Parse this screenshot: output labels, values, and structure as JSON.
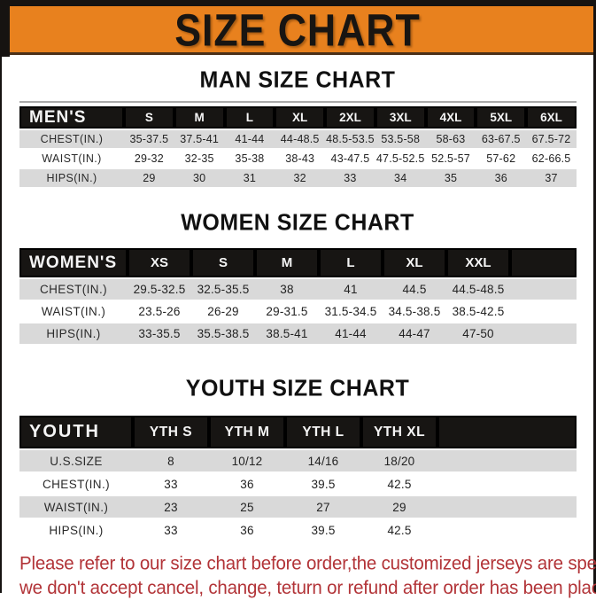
{
  "banner": {
    "title": "SIZE CHART",
    "accent_color": "#E8811E",
    "bar_color": "#161311"
  },
  "sections": [
    {
      "heading": "MAN SIZE CHART",
      "table": {
        "header": [
          "MEN'S",
          "S",
          "M",
          "L",
          "XL",
          "2XL",
          "3XL",
          "4XL",
          "5XL",
          "6XL"
        ],
        "rows": [
          [
            "CHEST(IN.)",
            "35-37.5",
            "37.5-41",
            "41-44",
            "44-48.5",
            "48.5-53.5",
            "53.5-58",
            "58-63",
            "63-67.5",
            "67.5-72"
          ],
          [
            "WAIST(IN.)",
            "29-32",
            "32-35",
            "35-38",
            "38-43",
            "43-47.5",
            "47.5-52.5",
            "52.5-57",
            "57-62",
            "62-66.5"
          ],
          [
            "HIPS(IN.)",
            "29",
            "30",
            "31",
            "32",
            "33",
            "34",
            "35",
            "36",
            "37"
          ]
        ]
      }
    },
    {
      "heading": "WOMEN SIZE CHART",
      "table": {
        "header": [
          "WOMEN'S",
          "XS",
          "S",
          "M",
          "L",
          "XL",
          "XXL"
        ],
        "rows": [
          [
            "CHEST(IN.)",
            "29.5-32.5",
            "32.5-35.5",
            "38",
            "41",
            "44.5",
            "44.5-48.5"
          ],
          [
            "WAIST(IN.)",
            "23.5-26",
            "26-29",
            "29-31.5",
            "31.5-34.5",
            "34.5-38.5",
            "38.5-42.5"
          ],
          [
            "HIPS(IN.)",
            "33-35.5",
            "35.5-38.5",
            "38.5-41",
            "41-44",
            "44-47",
            "47-50"
          ]
        ]
      }
    },
    {
      "heading": "YOUTH SIZE CHART",
      "table": {
        "header": [
          "YOUTH",
          "YTH S",
          "YTH M",
          "YTH L",
          "YTH XL"
        ],
        "rows": [
          [
            "U.S.SIZE",
            "8",
            "10/12",
            "14/16",
            "18/20"
          ],
          [
            "CHEST(IN.)",
            "33",
            "36",
            "39.5",
            "42.5"
          ],
          [
            "WAIST(IN.)",
            "23",
            "25",
            "27",
            "29"
          ],
          [
            "HIPS(IN.)",
            "33",
            "36",
            "39.5",
            "42.5"
          ]
        ]
      }
    }
  ],
  "footer": {
    "line1": "Please refer to our size chart before order,the customized jerseys are special products,",
    "line2": "we don't accept cancel, change, teturn or refund after order has been placed!",
    "text_color": "#B23438"
  }
}
